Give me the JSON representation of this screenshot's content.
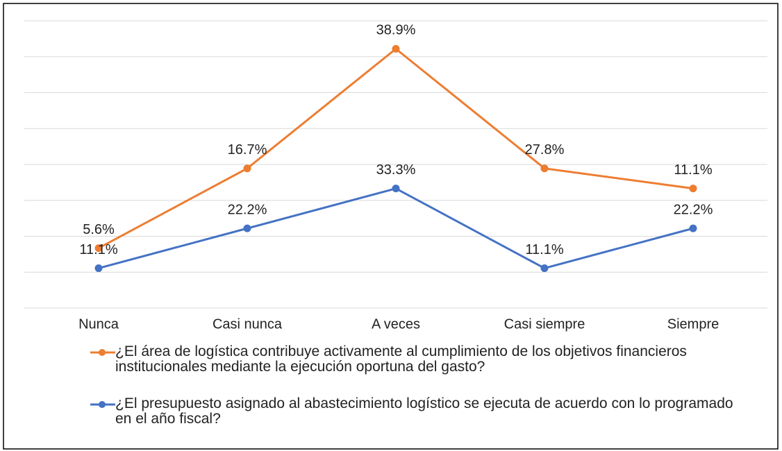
{
  "chart_data": {
    "type": "line",
    "stacked": true,
    "grid": true,
    "categories": [
      "Nunca",
      "Casi nunca",
      "A veces",
      "Casi siempre",
      "Siempre"
    ],
    "series": [
      {
        "name": "¿El área de logística contribuye activamente al cumplimiento de los objetivos financieros institucionales mediante la ejecución oportuna del gasto?",
        "color": "#ed7d31",
        "values": [
          5.6,
          16.7,
          38.9,
          27.8,
          11.1
        ],
        "value_labels": [
          "5.6%",
          "16.7%",
          "38.9%",
          "27.8%",
          "11.1%"
        ]
      },
      {
        "name": "¿El presupuesto asignado al abastecimiento logístico se ejecuta de acuerdo con lo programado en el año fiscal?",
        "color": "#4472c4",
        "values": [
          11.1,
          22.2,
          33.3,
          11.1,
          22.2
        ],
        "value_labels": [
          "11.1%",
          "22.2%",
          "33.3%",
          "11.1%",
          "22.2%"
        ]
      }
    ],
    "ylim": [
      0,
      80
    ],
    "yticks": [
      0,
      10,
      20,
      30,
      40,
      50,
      60,
      70,
      80
    ]
  }
}
